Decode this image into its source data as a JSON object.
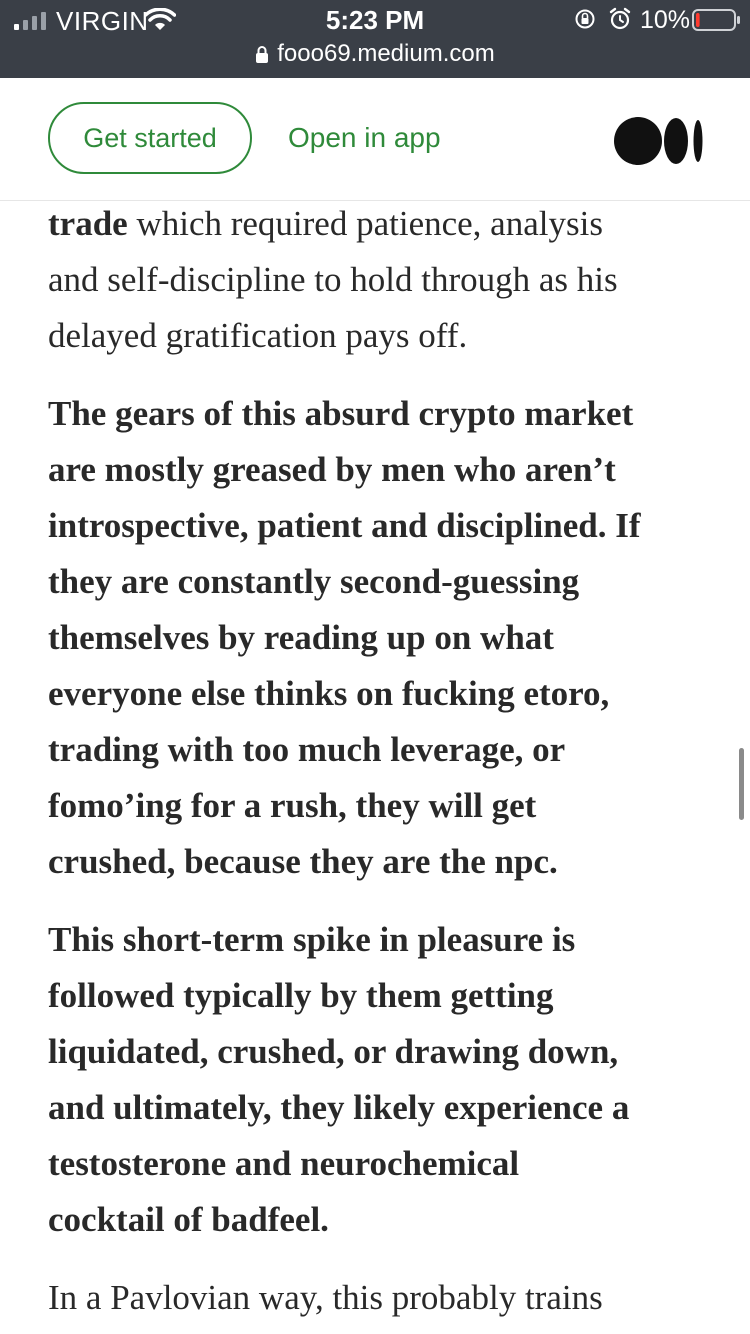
{
  "status_bar": {
    "carrier": "VIRGIN",
    "time": "5:23 PM",
    "battery_percent": "10%",
    "battery_level": 0.1,
    "battery_color": "#ff3b30",
    "icons": [
      "signal-icon",
      "wifi-icon",
      "rotation-lock-icon",
      "alarm-icon",
      "battery-icon"
    ]
  },
  "browser": {
    "url": "fooo69.medium.com"
  },
  "header": {
    "get_started_label": "Get started",
    "open_in_app_label": "Open in app",
    "accent_color": "#2f8a3a",
    "logo_icon": "medium-logo-icon"
  },
  "article": {
    "paragraphs": [
      {
        "lines": [
          {
            "bold": "trade",
            "text": " which required patience, analysis"
          },
          {
            "text": "and self-discipline to hold through as his"
          },
          {
            "text": "delayed gratification pays off."
          }
        ]
      },
      {
        "lines": [
          "The gears of this absurd crypto market",
          "are mostly greased by men who aren’t",
          "introspective, patient and disciplined. If",
          "they are constantly second-guessing",
          "themselves by reading up on what",
          "everyone else thinks on fucking etoro,",
          "trading with too much leverage, or",
          "fomo’ing for a rush, they will get",
          "crushed, because they are the npc."
        ]
      },
      {
        "lines": [
          "This short-term spike in pleasure is",
          "followed typically by them getting",
          "liquidated, crushed, or drawing down,",
          "and ultimately, they likely experience a",
          "testosterone and neurochemical",
          "cocktail of badfeel."
        ]
      },
      {
        "lines": [
          "In a Pavlovian way, this probably trains"
        ]
      }
    ]
  }
}
